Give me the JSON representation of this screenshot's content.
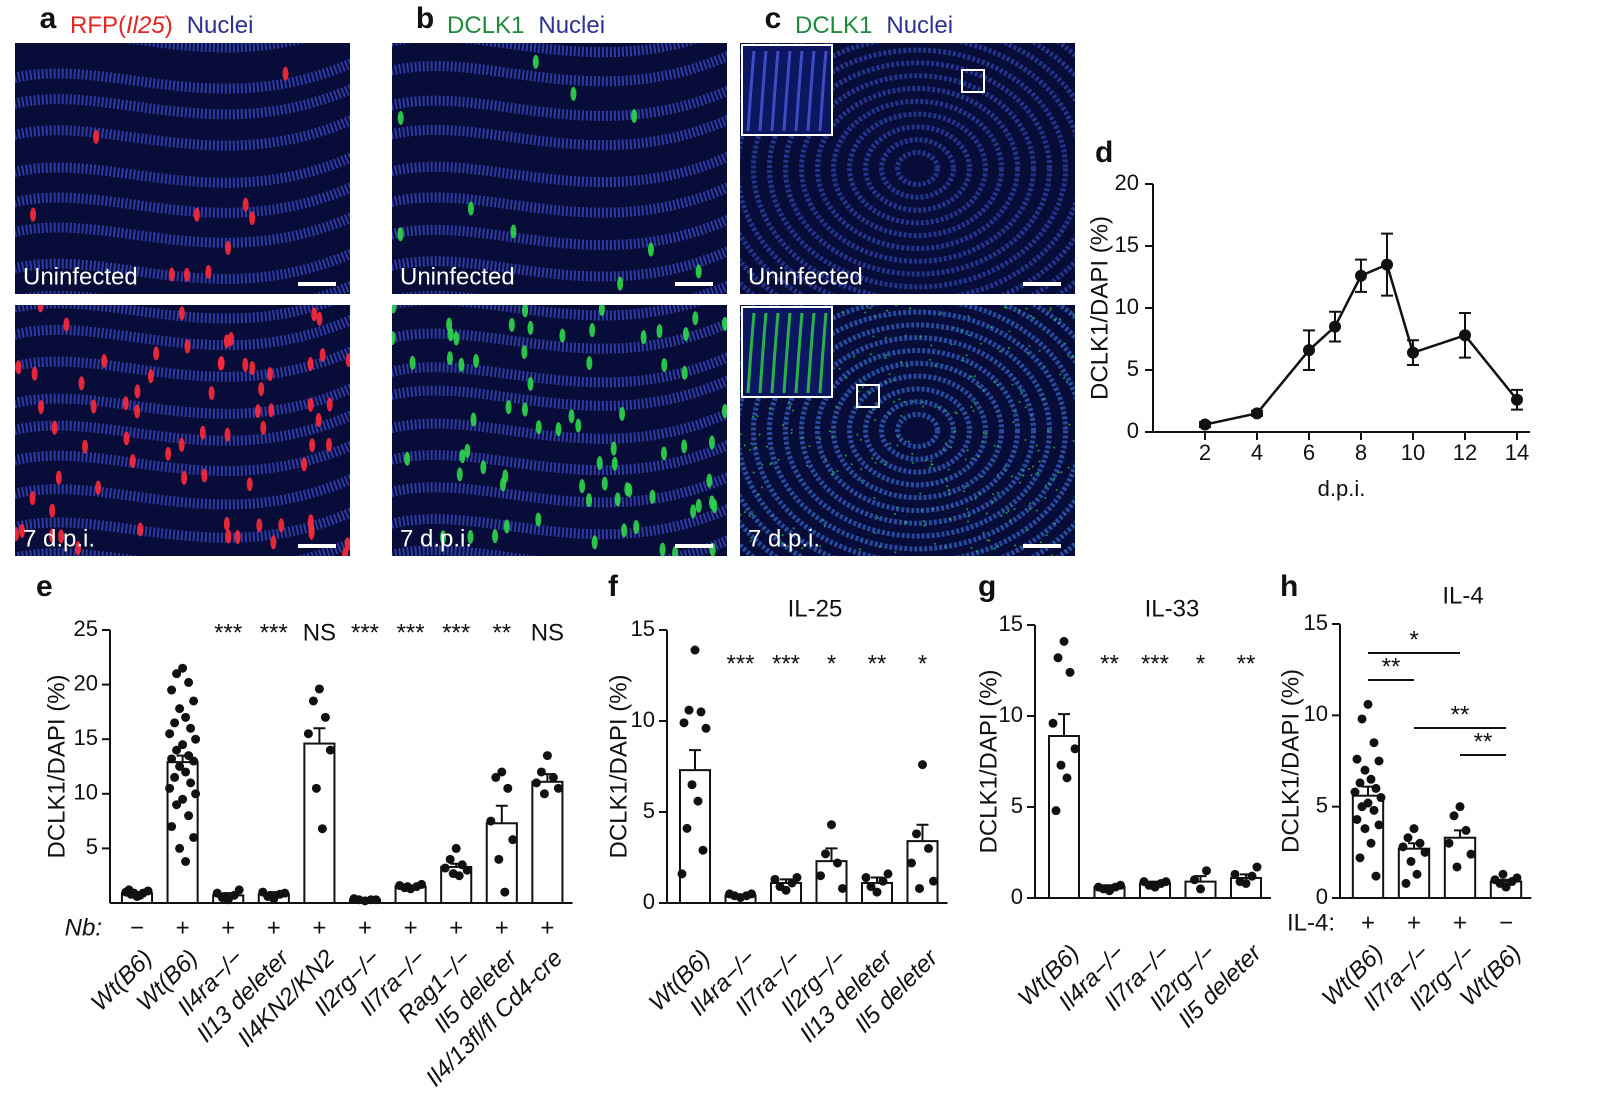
{
  "image_panels": [
    {
      "label": "a",
      "header": [
        {
          "text": "RFP(",
          "color": "#e52421"
        },
        {
          "text": "Il25",
          "color": "#e52421"
        },
        {
          "text": ")",
          "color": "#e52421"
        },
        {
          "text": "Nuclei",
          "color": "#2e3192"
        }
      ],
      "spot_color": "#ff2a3a",
      "images": [
        {
          "caption": "Uninfected"
        },
        {
          "caption": "7 d.p.i."
        }
      ]
    },
    {
      "label": "b",
      "header": [
        {
          "text": "DCLK1",
          "color": "#1e8a3c"
        },
        {
          "text": "Nuclei",
          "color": "#2e3192"
        }
      ],
      "spot_color": "#2fd84a",
      "images": [
        {
          "caption": "Uninfected"
        },
        {
          "caption": "7 d.p.i."
        }
      ]
    },
    {
      "label": "c",
      "header": [
        {
          "text": "DCLK1",
          "color": "#1e8a3c"
        },
        {
          "text": "Nuclei",
          "color": "#2e3192"
        }
      ],
      "spot_color": "#2fd84a",
      "images": [
        {
          "caption": "Uninfected"
        },
        {
          "caption": "7 d.p.i."
        }
      ]
    }
  ],
  "chart_data": [
    {
      "type": "line",
      "label": "d",
      "ylabel": "DCLK1/DAPI (%)",
      "xlabel": "d.p.i.",
      "x": [
        2,
        4,
        6,
        7,
        8,
        9,
        10,
        12,
        14
      ],
      "values": [
        0.6,
        1.5,
        6.6,
        8.5,
        12.6,
        13.5,
        6.4,
        7.8,
        2.6
      ],
      "errors": [
        0.2,
        0.2,
        1.6,
        1.2,
        1.3,
        2.5,
        1.0,
        1.8,
        0.8
      ],
      "xlim": [
        0,
        14.5
      ],
      "xticks": [
        2,
        4,
        6,
        8,
        10,
        12,
        14
      ],
      "ylim": [
        0,
        20
      ],
      "yticks": [
        0,
        5,
        10,
        15,
        20
      ],
      "color": "#111111"
    },
    {
      "type": "bar",
      "label": "e",
      "ylabel": "DCLK1/DAPI (%)",
      "categories": [
        "Wt(B6)",
        "Wt(B6)",
        "Il4ra−/−",
        "Il13 deleter",
        "Il4KN2/KN2",
        "Il2rg−/−",
        "Il7ra−/−",
        "Rag1−/−",
        "Il5 deleter",
        "Il4/13fl/fl Cd4-cre"
      ],
      "values": [
        0.9,
        12.9,
        0.7,
        0.8,
        14.6,
        0.3,
        1.5,
        3.3,
        7.3,
        11.1
      ],
      "errors": [
        0.1,
        0.6,
        0.2,
        0.2,
        1.4,
        0.1,
        0.1,
        0.3,
        1.6,
        0.7
      ],
      "points": [
        [
          0.6,
          0.8,
          0.9,
          1.0,
          1.1,
          0.9,
          0.7,
          1.2
        ],
        [
          21.5,
          21.0,
          20.2,
          19.5,
          18.5,
          17.8,
          17.0,
          16.5,
          16.0,
          15.5,
          15.0,
          14.5,
          14.0,
          13.5,
          13.2,
          13.0,
          12.5,
          12.0,
          11.5,
          11.0,
          10.5,
          10.0,
          9.5,
          9.0,
          8.0,
          7.0,
          6.0,
          5.0,
          3.8
        ],
        [
          0.3,
          0.5,
          0.7,
          0.9,
          1.2,
          0.6
        ],
        [
          0.4,
          0.6,
          0.8,
          1.0,
          0.9,
          0.7
        ],
        [
          19.6,
          18.5,
          17.0,
          15.5,
          14.0,
          10.5,
          6.8
        ],
        [
          0.2,
          0.3,
          0.3,
          0.4,
          0.3
        ],
        [
          1.3,
          1.4,
          1.5,
          1.6,
          1.7,
          1.5
        ],
        [
          5.0,
          4.0,
          3.5,
          3.2,
          3.0,
          2.7,
          2.5
        ],
        [
          12.0,
          11.5,
          10.5,
          7.5,
          5.8,
          4.0,
          1.0
        ],
        [
          13.5,
          12.0,
          11.5,
          11.0,
          10.5,
          10.0
        ]
      ],
      "significance": [
        null,
        null,
        "***",
        "***",
        "NS",
        "***",
        "***",
        "***",
        "**",
        "NS"
      ],
      "row_label": "Nb:",
      "row": [
        "−",
        "+",
        "+",
        "+",
        "+",
        "+",
        "+",
        "+",
        "+",
        "+"
      ],
      "ylim": [
        0,
        25
      ],
      "yticks": [
        5,
        10,
        15,
        20,
        25
      ]
    },
    {
      "type": "bar",
      "label": "f",
      "title": "IL-25",
      "ylabel": "DCLK1/DAPI (%)",
      "categories": [
        "Wt(B6)",
        "Il4ra−/−",
        "Il7ra−/−",
        "Il2rg−/−",
        "Il13 deleter",
        "Il5 deleter"
      ],
      "values": [
        7.3,
        0.4,
        1.1,
        2.3,
        1.1,
        3.4
      ],
      "errors": [
        1.1,
        0.05,
        0.2,
        0.7,
        0.3,
        0.9
      ],
      "points": [
        [
          13.9,
          10.6,
          10.5,
          9.9,
          9.6,
          6.5,
          5.6,
          4.1,
          2.9,
          1.6
        ],
        [
          0.3,
          0.4,
          0.4,
          0.5,
          0.5
        ],
        [
          0.7,
          0.9,
          1.1,
          1.3,
          1.4
        ],
        [
          4.3,
          2.7,
          2.2,
          1.5,
          0.8
        ],
        [
          0.6,
          0.9,
          1.2,
          1.4,
          1.6
        ],
        [
          7.6,
          3.8,
          3.0,
          2.2,
          1.2,
          0.8
        ]
      ],
      "significance": [
        null,
        "***",
        "***",
        "*",
        "**",
        "*"
      ],
      "ylim": [
        0,
        15
      ],
      "yticks": [
        0,
        5,
        10,
        15
      ]
    },
    {
      "type": "bar",
      "label": "g",
      "title": "IL-33",
      "ylabel": "DCLK1/DAPI (%)",
      "categories": [
        "Wt(B6)",
        "Il4ra−/−",
        "Il7ra−/−",
        "Il2rg−/−",
        "Il5 deleter"
      ],
      "values": [
        8.9,
        0.6,
        0.8,
        0.9,
        1.1
      ],
      "errors": [
        1.2,
        0.1,
        0.1,
        0.3,
        0.2
      ],
      "points": [
        [
          14.1,
          13.2,
          12.4,
          9.6,
          8.2,
          7.3,
          6.6,
          4.8
        ],
        [
          0.4,
          0.5,
          0.6,
          0.6,
          0.7
        ],
        [
          0.6,
          0.7,
          0.8,
          0.9,
          0.9
        ],
        [
          0.5,
          1.0,
          1.5
        ],
        [
          0.8,
          0.9,
          1.2,
          1.3,
          1.7
        ]
      ],
      "significance": [
        null,
        "**",
        "***",
        "*",
        "**"
      ],
      "ylim": [
        0,
        15
      ],
      "yticks": [
        0,
        5,
        10,
        15
      ]
    },
    {
      "type": "bar",
      "label": "h",
      "title": "IL-4",
      "ylabel": "DCLK1/DAPI (%)",
      "categories": [
        "Wt(B6)",
        "Il7ra−/−",
        "Il2rg−/−",
        "Wt(B6)"
      ],
      "values": [
        5.6,
        2.7,
        3.3,
        0.9
      ],
      "errors": [
        0.5,
        0.3,
        0.4,
        0.1
      ],
      "points": [
        [
          10.6,
          9.8,
          8.5,
          7.6,
          7.5,
          7.0,
          6.5,
          6.3,
          6.0,
          5.8,
          5.5,
          5.2,
          5.0,
          4.8,
          4.3,
          4.0,
          3.8,
          3.0,
          2.2,
          1.2
        ],
        [
          3.8,
          3.3,
          3.0,
          2.8,
          2.5,
          2.0,
          1.3,
          0.8
        ],
        [
          5.0,
          4.5,
          3.7,
          3.0,
          2.4,
          1.7
        ],
        [
          0.6,
          0.8,
          0.9,
          1.0,
          1.1,
          1.3
        ]
      ],
      "brackets": [
        {
          "from": 0,
          "to": 2,
          "label": "*"
        },
        {
          "from": 0,
          "to": 1,
          "label": "**"
        },
        {
          "from": 1,
          "to": 3,
          "label": "**"
        },
        {
          "from": 2,
          "to": 3,
          "label": "**"
        }
      ],
      "row_label": "IL-4:",
      "row": [
        "+",
        "+",
        "+",
        "−"
      ],
      "ylim": [
        0,
        15
      ],
      "yticks": [
        0,
        5,
        10,
        15
      ]
    }
  ]
}
